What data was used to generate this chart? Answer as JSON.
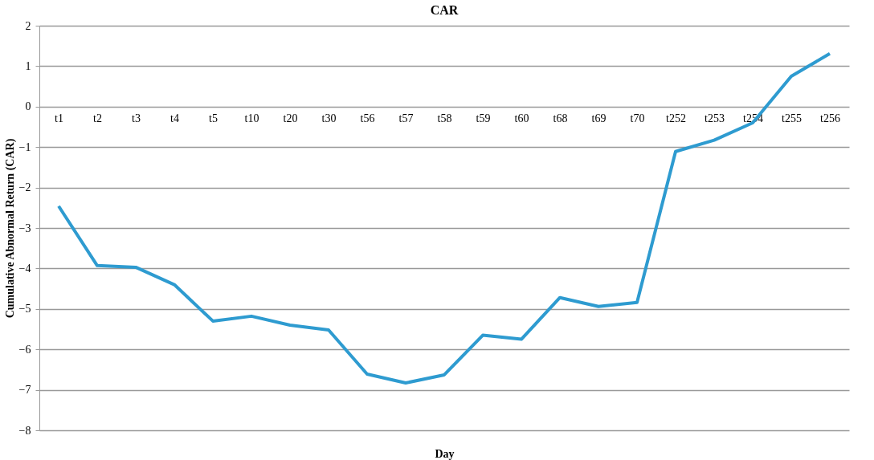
{
  "chart_data": {
    "type": "line",
    "title": "CAR",
    "xlabel": "Day",
    "ylabel": "Cumulative Abnormal Return (CAR)",
    "categories": [
      "t1",
      "t2",
      "t3",
      "t4",
      "t5",
      "t10",
      "t20",
      "t30",
      "t56",
      "t57",
      "t58",
      "t59",
      "t60",
      "t68",
      "t69",
      "t70",
      "t252",
      "t253",
      "t254",
      "t255",
      "t256"
    ],
    "series": [
      {
        "color": "#2e9bd0",
        "values": [
          -2.46,
          -3.93,
          -3.97,
          -4.4,
          -5.3,
          -5.18,
          -5.4,
          -5.52,
          -6.61,
          -6.83,
          -6.63,
          -5.65,
          -5.75,
          -4.72,
          -4.94,
          -4.84,
          -1.11,
          -0.83,
          -0.4,
          0.75,
          1.31
        ]
      }
    ],
    "ylim": [
      -8,
      2
    ],
    "yticks": [
      -8,
      -7,
      -6,
      -5,
      -4,
      -3,
      -2,
      -1,
      0,
      1,
      2
    ],
    "grid": "y",
    "legend": false,
    "marker": "none",
    "line_style": "solid"
  }
}
